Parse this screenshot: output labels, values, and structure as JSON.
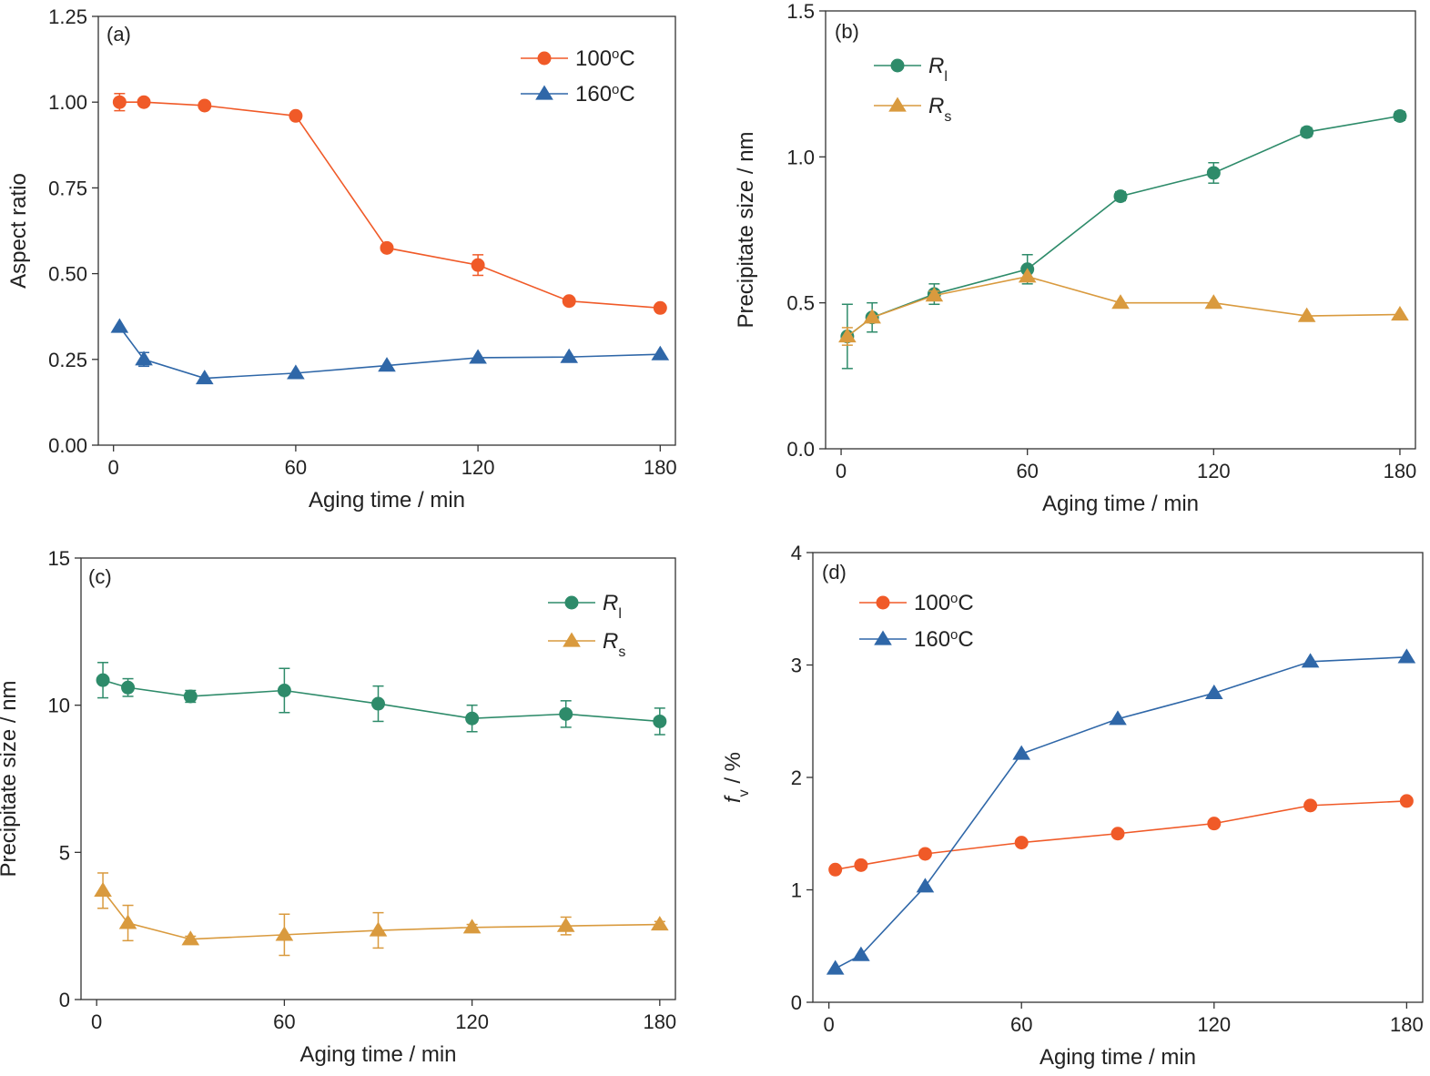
{
  "chart_data": [
    {
      "type": "line",
      "panel_label": "(a)",
      "xlabel": "Aging time / min",
      "ylabel": "Aspect ratio",
      "xlim": [
        -5,
        185
      ],
      "ylim": [
        0,
        1.25
      ],
      "xticks": [
        0,
        60,
        120,
        180
      ],
      "xtick_labels": [
        "0",
        "60",
        "120",
        "180"
      ],
      "yticks": [
        0,
        0.25,
        0.5,
        0.75,
        1.0,
        1.25
      ],
      "ytick_labels": [
        "0.00",
        "0.25",
        "0.50",
        "0.75",
        "1.00",
        "1.25"
      ],
      "grid": false,
      "legend": "top-right",
      "series": [
        {
          "name": "100",
          "name_sup": "o",
          "name_suffix": "C",
          "marker": "circle",
          "color": "#f05a28",
          "x": [
            2,
            10,
            30,
            60,
            90,
            120,
            150,
            180
          ],
          "y": [
            1.0,
            1.0,
            0.99,
            0.96,
            0.575,
            0.525,
            0.42,
            0.4
          ],
          "err": [
            0.025,
            0.0,
            0.0,
            0.0,
            0.0,
            0.03,
            0.0,
            0.0
          ]
        },
        {
          "name": "160",
          "name_sup": "o",
          "name_suffix": "C",
          "marker": "triangle",
          "color": "#2f67a8",
          "x": [
            2,
            10,
            30,
            60,
            90,
            120,
            150,
            180
          ],
          "y": [
            0.345,
            0.25,
            0.195,
            0.21,
            0.232,
            0.255,
            0.257,
            0.265
          ],
          "err": [
            0.0,
            0.02,
            0.0,
            0.0,
            0.0,
            0.0,
            0.0,
            0.0
          ]
        }
      ]
    },
    {
      "type": "line",
      "panel_label": "(b)",
      "xlabel": "Aging time / min",
      "ylabel": "Precipitate size / nm",
      "xlim": [
        -5,
        185
      ],
      "ylim": [
        0,
        1.5
      ],
      "xticks": [
        0,
        60,
        120,
        180
      ],
      "xtick_labels": [
        "0",
        "60",
        "120",
        "180"
      ],
      "yticks": [
        0,
        0.5,
        1.0,
        1.5
      ],
      "ytick_labels": [
        "0.0",
        "0.5",
        "1.0",
        "1.5"
      ],
      "grid": false,
      "legend": "top-left",
      "series": [
        {
          "name": "R",
          "name_sub": "l",
          "marker": "circle",
          "color": "#2e8b6a",
          "x": [
            2,
            10,
            30,
            60,
            90,
            120,
            150,
            180
          ],
          "y": [
            0.385,
            0.45,
            0.53,
            0.615,
            0.865,
            0.945,
            1.085,
            1.14
          ],
          "err": [
            0.11,
            0.05,
            0.035,
            0.05,
            0.015,
            0.035,
            0.015,
            0.015
          ]
        },
        {
          "name": "R",
          "name_sub": "s",
          "marker": "triangle",
          "color": "#d99a3e",
          "x": [
            2,
            10,
            30,
            60,
            90,
            120,
            150,
            180
          ],
          "y": [
            0.385,
            0.45,
            0.525,
            0.59,
            0.5,
            0.5,
            0.455,
            0.46
          ],
          "err": [
            0.03,
            0.0,
            0.015,
            0.0,
            0.0,
            0.0,
            0.0,
            0.0
          ]
        }
      ]
    },
    {
      "type": "line",
      "panel_label": "(c)",
      "xlabel": "Aging time / min",
      "ylabel": "Precipitate size / nm",
      "xlim": [
        -5,
        185
      ],
      "ylim": [
        0,
        15
      ],
      "xticks": [
        0,
        60,
        120,
        180
      ],
      "xtick_labels": [
        "0",
        "60",
        "120",
        "180"
      ],
      "yticks": [
        0,
        5,
        10,
        15
      ],
      "ytick_labels": [
        "0",
        "5",
        "10",
        "15"
      ],
      "grid": false,
      "legend": "top-right",
      "series": [
        {
          "name": "R",
          "name_sub": "l",
          "marker": "circle",
          "color": "#2e8b6a",
          "x": [
            2,
            10,
            30,
            60,
            90,
            120,
            150,
            180
          ],
          "y": [
            10.85,
            10.6,
            10.3,
            10.5,
            10.05,
            9.55,
            9.7,
            9.45
          ],
          "err": [
            0.6,
            0.3,
            0.2,
            0.75,
            0.6,
            0.45,
            0.45,
            0.45
          ]
        },
        {
          "name": "R",
          "name_sub": "s",
          "marker": "triangle",
          "color": "#d99a3e",
          "x": [
            2,
            10,
            30,
            60,
            90,
            120,
            150,
            180
          ],
          "y": [
            3.7,
            2.6,
            2.05,
            2.2,
            2.35,
            2.45,
            2.5,
            2.55
          ],
          "err": [
            0.6,
            0.6,
            0.1,
            0.7,
            0.6,
            0.1,
            0.3,
            0.1
          ]
        }
      ]
    },
    {
      "type": "line",
      "panel_label": "(d)",
      "xlabel": "Aging time / min",
      "ylabel": "f",
      "ylabel_sub": "v",
      "ylabel_suffix": " / %",
      "xlim": [
        -5,
        185
      ],
      "ylim": [
        0,
        4
      ],
      "xticks": [
        0,
        60,
        120,
        180
      ],
      "xtick_labels": [
        "0",
        "60",
        "120",
        "180"
      ],
      "yticks": [
        0,
        1,
        2,
        3,
        4
      ],
      "ytick_labels": [
        "0",
        "1",
        "2",
        "3",
        "4"
      ],
      "grid": false,
      "legend": "top-left",
      "series": [
        {
          "name": "100",
          "name_sup": "o",
          "name_suffix": "C",
          "marker": "circle",
          "color": "#f05a28",
          "x": [
            2,
            10,
            30,
            60,
            90,
            120,
            150,
            180
          ],
          "y": [
            1.18,
            1.22,
            1.32,
            1.42,
            1.5,
            1.59,
            1.75,
            1.79
          ],
          "err": [
            0,
            0,
            0,
            0,
            0,
            0,
            0,
            0
          ]
        },
        {
          "name": "160",
          "name_sup": "o",
          "name_suffix": "C",
          "marker": "triangle",
          "color": "#2f67a8",
          "x": [
            2,
            10,
            30,
            60,
            90,
            120,
            150,
            180
          ],
          "y": [
            0.3,
            0.42,
            1.03,
            2.21,
            2.52,
            2.75,
            3.03,
            3.07
          ],
          "err": [
            0,
            0,
            0,
            0,
            0,
            0,
            0,
            0
          ]
        }
      ]
    }
  ]
}
